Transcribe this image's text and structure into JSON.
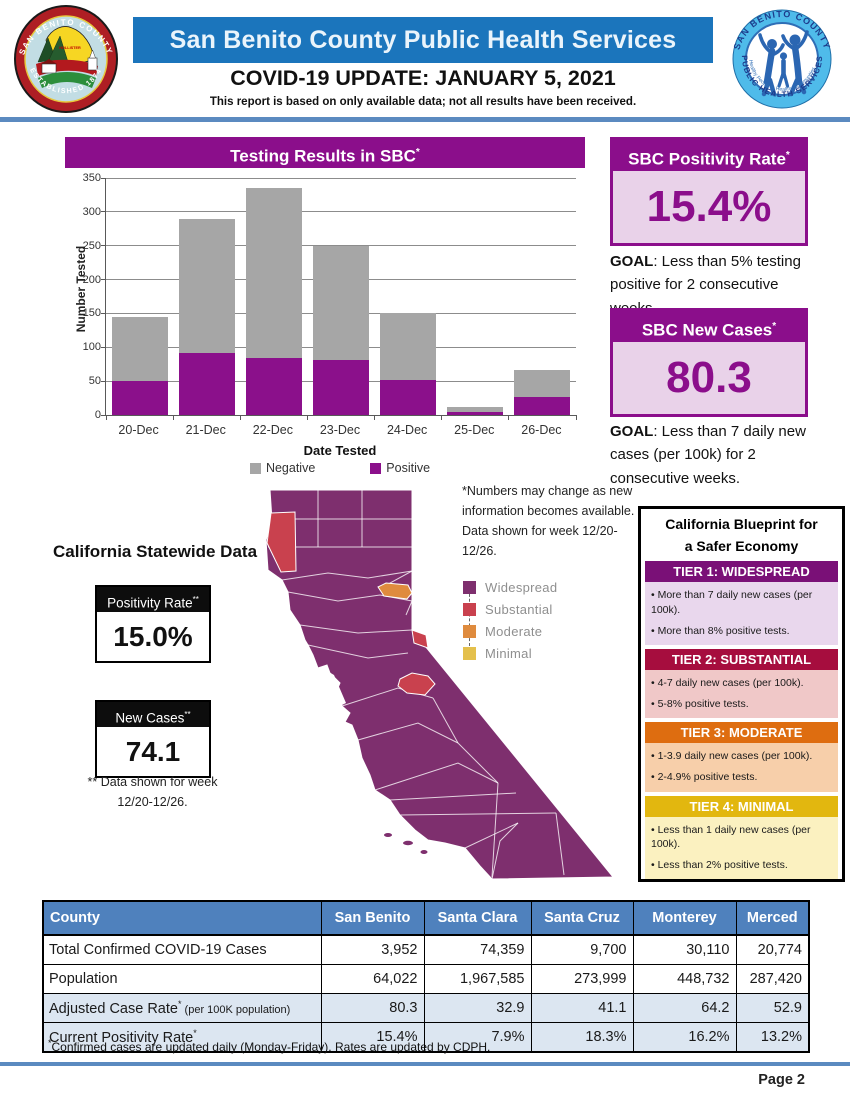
{
  "header": {
    "banner_title": "San Benito County Public Health Services",
    "update_line": "COVID-19 UPDATE: JANUARY 5, 2021",
    "disclaimer": "This report is based on only available data; not all results have been received.",
    "left_seal": {
      "top_text": "SAN BENITO COUNTY",
      "bottom_text": "ESTABLISHED 1874",
      "place_label": "HOLLISTER"
    },
    "right_seal": {
      "top_text": "SAN BENITO COUNTY",
      "bottom_text": "PUBLIC HEALTH SERVICES",
      "inner_text": "Healthy People In Healthy Communities"
    }
  },
  "chart_data": {
    "type": "bar",
    "stacked": true,
    "title": "Testing Results in SBC",
    "title_sup": "*",
    "categories": [
      "20-Dec",
      "21-Dec",
      "22-Dec",
      "23-Dec",
      "24-Dec",
      "25-Dec",
      "26-Dec"
    ],
    "series": [
      {
        "name": "Negative",
        "color": "#A6A6A6",
        "stack": "top",
        "values": [
          95,
          199,
          252,
          169,
          99,
          7,
          39
        ]
      },
      {
        "name": "Positive",
        "color": "#8B108B",
        "stack": "bottom",
        "values": [
          50,
          91,
          84,
          81,
          51,
          5,
          27
        ]
      }
    ],
    "xlabel": "Date Tested",
    "ylabel": "Number Tested",
    "ylim": [
      0,
      350
    ],
    "ytick_step": 50,
    "grid": true,
    "legend_position": "bottom"
  },
  "kpi": {
    "positivity": {
      "title": "SBC Positivity Rate",
      "title_sup": "*",
      "value": "15.4%",
      "goal_bold": "GOAL",
      "goal_text": ": Less than 5% testing positive for 2 consecutive weeks."
    },
    "new_cases": {
      "title": "SBC New Cases",
      "title_sup": "*",
      "value": "80.3",
      "goal_bold": "GOAL",
      "goal_text": ": Less than 7 daily new cases (per 100k) for 2 consecutive weeks."
    }
  },
  "statewide": {
    "heading": "California Statewide Data",
    "positivity": {
      "title": "Positivity Rate",
      "title_sup": "**",
      "value": "15.0%"
    },
    "new_cases": {
      "title": "New Cases",
      "title_sup": "**",
      "value": "74.1"
    },
    "footnote_line1": "** Data shown for week",
    "footnote_line2": "12/20-12/26."
  },
  "map_note": {
    "line1": "*Numbers may change as new",
    "line2": "information becomes available.",
    "line3": "Data shown for week 12/20-12/26."
  },
  "map": {
    "legend": [
      {
        "label": "Widespread",
        "color": "#7E2F6E"
      },
      {
        "label": "Substantial",
        "color": "#C9414E"
      },
      {
        "label": "Moderate",
        "color": "#DF8B3E"
      },
      {
        "label": "Minimal",
        "color": "#E4C04C"
      }
    ]
  },
  "blueprint": {
    "title_line1": "California Blueprint for",
    "title_line2": "a Safer Economy",
    "tiers": [
      {
        "name": "TIER 1: WIDESPREAD",
        "header_color": "#7A1077",
        "body_color": "#E9D7ED",
        "bullets": [
          "More than 7 daily new cases (per 100k).",
          "More than 8% positive tests."
        ]
      },
      {
        "name": "TIER 2: SUBSTANTIAL",
        "header_color": "#A60D3E",
        "body_color": "#F0C8C8",
        "bullets": [
          "4-7 daily new cases (per 100k).",
          "5-8% positive tests."
        ]
      },
      {
        "name": "TIER 3: MODERATE",
        "header_color": "#DE6D10",
        "body_color": "#F7CFAA",
        "bullets": [
          "1-3.9 daily new cases (per 100k).",
          "2-4.9% positive tests."
        ]
      },
      {
        "name": "TIER 4: MINIMAL",
        "header_color": "#E2B70F",
        "body_color": "#FBF1C0",
        "bullets": [
          "Less than 1 daily new cases (per 100k).",
          "Less than 2% positive tests."
        ]
      }
    ]
  },
  "county_table": {
    "header": [
      "County",
      "San Benito",
      "Santa Clara",
      "Santa Cruz",
      "Monterey",
      "Merced"
    ],
    "rows": [
      {
        "label": "Total Confirmed COVID-19 Cases",
        "label_sup": "",
        "label_suffix": "",
        "values": [
          "3,952",
          "74,359",
          "9,700",
          "30,110",
          "20,774"
        ],
        "shaded": false
      },
      {
        "label": "Population",
        "label_sup": "",
        "label_suffix": "",
        "values": [
          "64,022",
          "1,967,585",
          "273,999",
          "448,732",
          "287,420"
        ],
        "shaded": false
      },
      {
        "label": "Adjusted Case Rate",
        "label_sup": "*",
        "label_suffix": " (per 100K population)",
        "values": [
          "80.3",
          "32.9",
          "41.1",
          "64.2",
          "52.9"
        ],
        "shaded": true
      },
      {
        "label": "Current Positivity Rate",
        "label_sup": "*",
        "label_suffix": "",
        "values": [
          "15.4%",
          "7.9%",
          "18.3%",
          "16.2%",
          "13.2%"
        ],
        "shaded": true
      }
    ],
    "footnote_sup": "*",
    "footnote": "Confirmed cases are updated daily (Monday-Friday). Rates are updated by CDPH."
  },
  "footer": {
    "page_label": "Page 2"
  },
  "colors": {
    "purple_accent": "#8B0E8B",
    "light_purple_fill": "#E9D2E9",
    "banner_blue": "#1B75BC",
    "rule_blue": "#5B8AC0",
    "table_header_blue": "#4F81BD",
    "table_shade_blue": "#DCE6F1",
    "bar_gray": "#A6A6A6"
  }
}
